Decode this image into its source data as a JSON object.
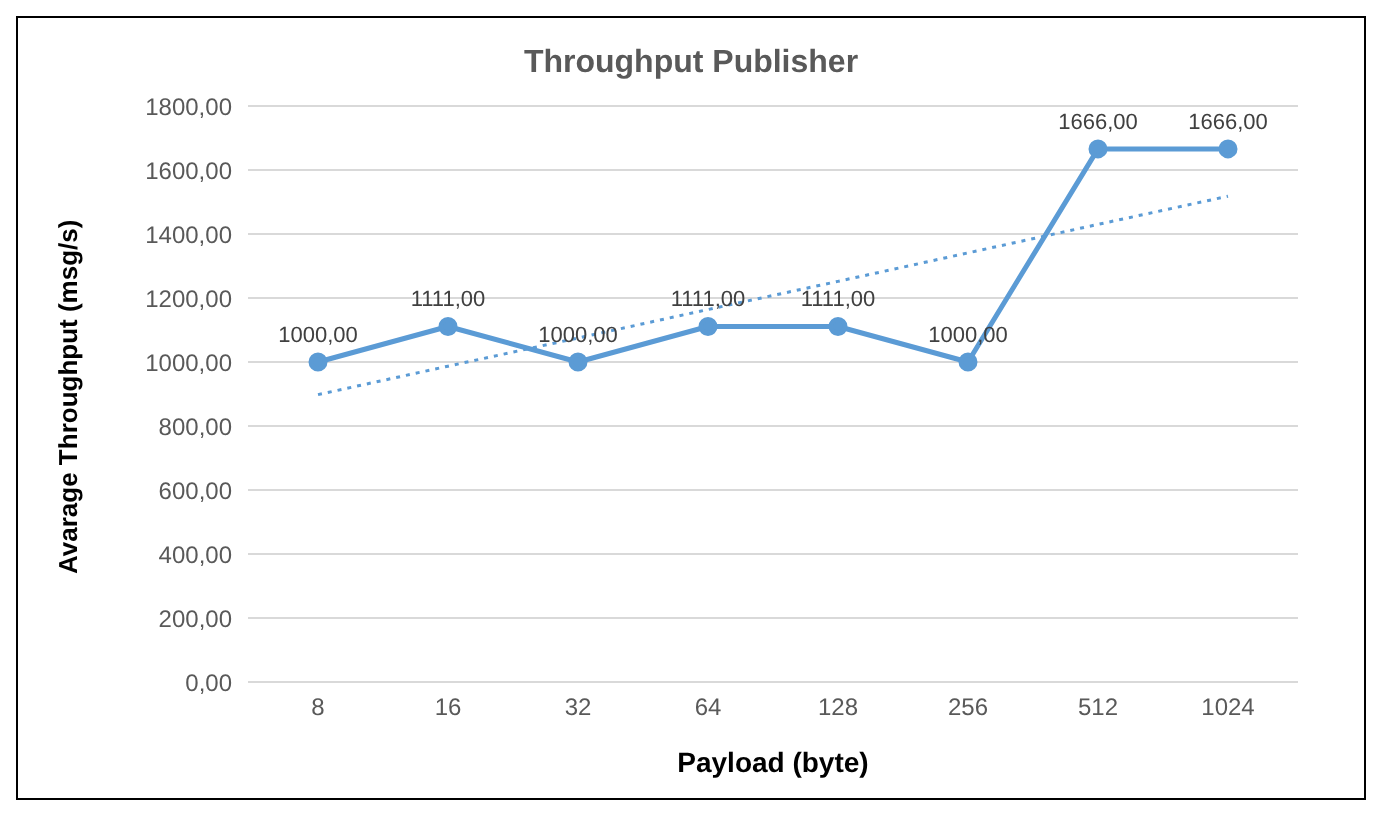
{
  "chart_data": {
    "type": "line",
    "title": "Throughput Publisher",
    "xlabel": "Payload (byte)",
    "ylabel": "Avarage Throughput (msg/s)",
    "categories": [
      "8",
      "16",
      "32",
      "64",
      "128",
      "256",
      "512",
      "1024"
    ],
    "series": [
      {
        "color": "#5b9bd5",
        "marker": "circle",
        "line_style": "solid",
        "values": [
          1000,
          1111,
          1000,
          1111,
          1111,
          1000,
          1666,
          1666
        ],
        "value_labels": [
          "1000,00",
          "1111,00",
          "1000,00",
          "1111,00",
          "1111,00",
          "1000,00",
          "1666,00",
          "1666,00"
        ]
      },
      {
        "color": "#5b9bd5",
        "marker": "none",
        "line_style": "dotted",
        "values": [
          898,
          987,
          1075,
          1164,
          1252,
          1341,
          1430,
          1518
        ]
      }
    ],
    "ylim": [
      0,
      1800
    ],
    "yticks": [
      {
        "value": 0,
        "label": "0,00"
      },
      {
        "value": 200,
        "label": "200,00"
      },
      {
        "value": 400,
        "label": "400,00"
      },
      {
        "value": 600,
        "label": "600,00"
      },
      {
        "value": 800,
        "label": "800,00"
      },
      {
        "value": 1000,
        "label": "1000,00"
      },
      {
        "value": 1200,
        "label": "1200,00"
      },
      {
        "value": 1400,
        "label": "1400,00"
      },
      {
        "value": 1600,
        "label": "1600,00"
      },
      {
        "value": 1800,
        "label": "1800,00"
      }
    ],
    "grid": "y",
    "legend": false
  }
}
